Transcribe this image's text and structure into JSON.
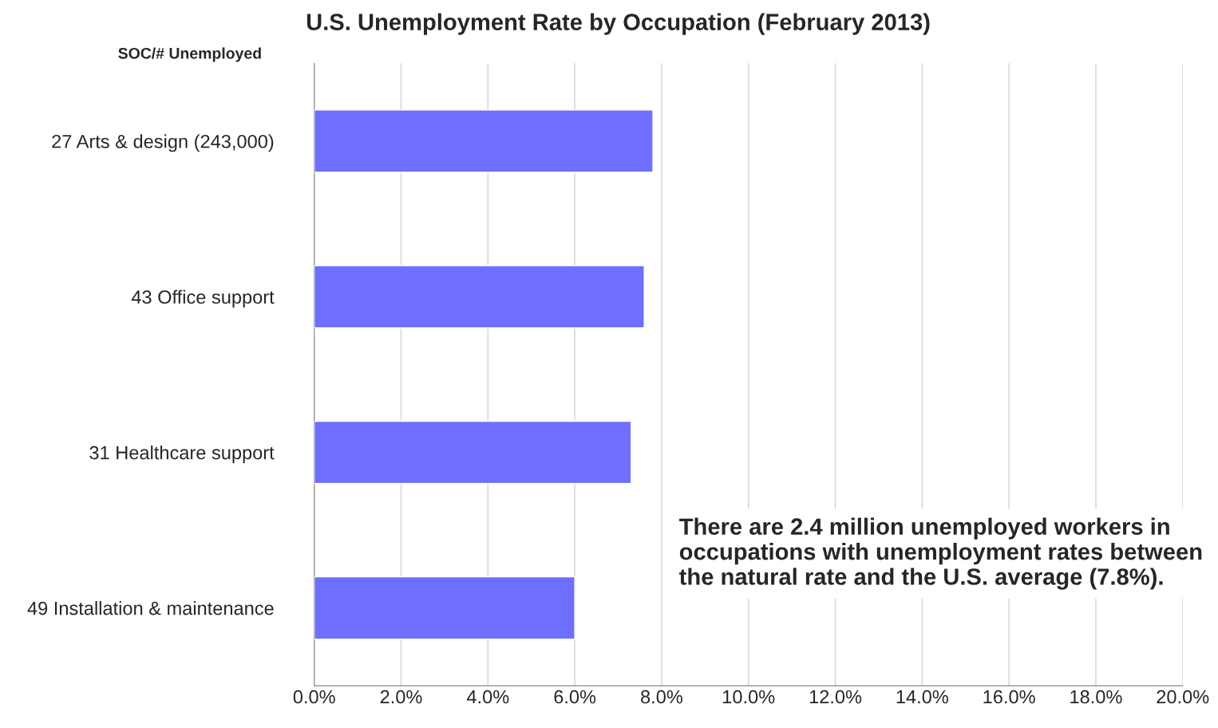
{
  "chart_data": {
    "type": "bar",
    "orientation": "horizontal",
    "title": "U.S. Unemployment Rate by Occupation (February 2013)",
    "ylabel": "SOC/# Unemployed",
    "categories": [
      "27 Arts & design (243,000)",
      "43 Office support",
      "31 Healthcare support",
      "49 Installation & maintenance"
    ],
    "values": [
      7.8,
      7.6,
      7.3,
      6.0
    ],
    "color": "#6e6eff",
    "xlim": [
      0,
      20
    ],
    "xticks": [
      {
        "value": 0,
        "label": "0.0%"
      },
      {
        "value": 2,
        "label": "2.0%"
      },
      {
        "value": 4,
        "label": "4.0%"
      },
      {
        "value": 6,
        "label": "6.0%"
      },
      {
        "value": 8,
        "label": "8.0%"
      },
      {
        "value": 10,
        "label": "10.0%"
      },
      {
        "value": 12,
        "label": "12.0%"
      },
      {
        "value": 14,
        "label": "14.0%"
      },
      {
        "value": 16,
        "label": "16.0%"
      },
      {
        "value": 18,
        "label": "18.0%"
      },
      {
        "value": 20,
        "label": "20.0%"
      }
    ],
    "grid": "x",
    "annotations": [
      "There are 2.4 million unemployed workers in occupations with unemployment rates between the natural rate and the U.S. average (7.8%)."
    ]
  }
}
